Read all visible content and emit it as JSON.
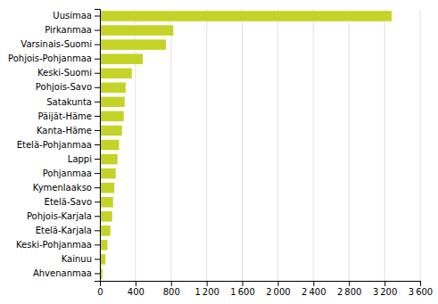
{
  "chart_data": {
    "type": "bar",
    "orientation": "horizontal",
    "categories": [
      "Ahvenanmaa",
      "Kainuu",
      "Keski-Pohjanmaa",
      "Etelä-Karjala",
      "Pohjois-Karjala",
      "Etelä-Savo",
      "Kymenlaakso",
      "Pohjanmaa",
      "Lappi",
      "Etelä-Pohjanmaa",
      "Kanta-Häme",
      "Päijät-Häme",
      "Satakunta",
      "Pohjois-Savo",
      "Keski-Suomi",
      "Pohjois-Pohjanmaa",
      "Varsinais-Suomi",
      "Pirkanmaa",
      "Uusimaa"
    ],
    "values": [
      28,
      62,
      85,
      118,
      138,
      148,
      162,
      178,
      198,
      215,
      248,
      268,
      278,
      290,
      358,
      482,
      742,
      825,
      3280
    ],
    "color": "#c5d327",
    "xlim": [
      0,
      3600
    ],
    "xticks": [
      0,
      400,
      800,
      {
        "value": 1200,
        "label": "1 200"
      },
      {
        "value": 1600,
        "label": "1 600"
      },
      {
        "value": 2000,
        "label": "2 000"
      },
      {
        "value": 2400,
        "label": "2 400"
      },
      {
        "value": 2800,
        "label": "2 800"
      },
      {
        "value": 3200,
        "label": "3 200"
      },
      {
        "value": 3600,
        "label": "3 600"
      }
    ],
    "grid": true
  }
}
